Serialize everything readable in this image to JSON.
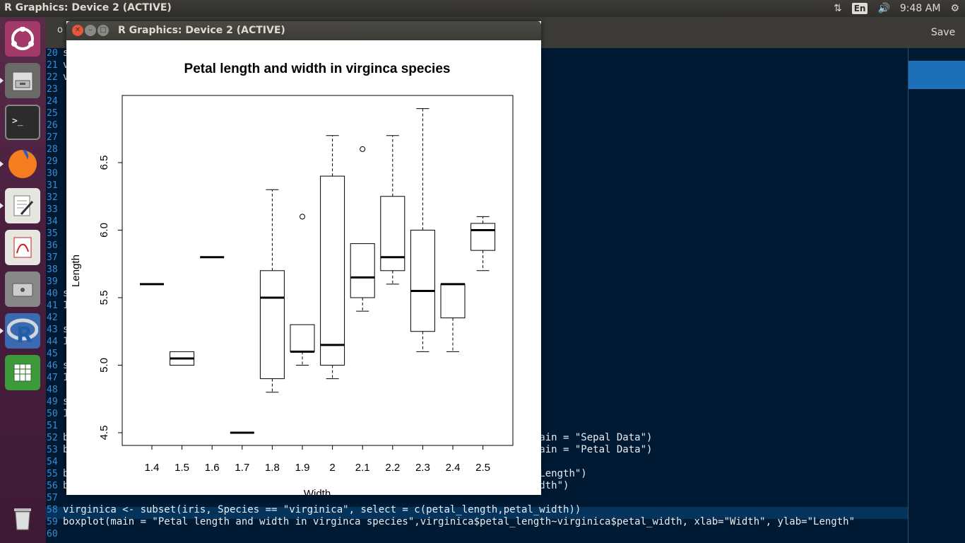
{
  "topbar": {
    "title": "R Graphics: Device 2 (ACTIVE)",
    "lang": "En",
    "time": "9:48 AM"
  },
  "launcher": {
    "items": [
      "ubuntu-logo-icon",
      "file-cabinet-icon",
      "terminal-icon",
      "firefox-icon",
      "text-editor-icon",
      "document-viewer-icon",
      "drive-icon",
      "r-logo-icon",
      "spreadsheet-icon",
      "trash-icon"
    ]
  },
  "editor": {
    "save_label": "Save",
    "left_char": "o",
    "lines": [
      {
        "n": "20",
        "t": "s"
      },
      {
        "n": "21",
        "t": "v"
      },
      {
        "n": "22",
        "t": "v"
      },
      {
        "n": "23",
        "t": ""
      },
      {
        "n": "24",
        "t": ""
      },
      {
        "n": "25",
        "t": ""
      },
      {
        "n": "26",
        "t": ""
      },
      {
        "n": "27",
        "t": ""
      },
      {
        "n": "28",
        "t": ""
      },
      {
        "n": "29",
        "t": ""
      },
      {
        "n": "30",
        "t": ""
      },
      {
        "n": "31",
        "t": ""
      },
      {
        "n": "32",
        "t": ""
      },
      {
        "n": "33",
        "t": ""
      },
      {
        "n": "34",
        "t": ""
      },
      {
        "n": "35",
        "t": ""
      },
      {
        "n": "36",
        "t": ""
      },
      {
        "n": "37",
        "t": ""
      },
      {
        "n": "38",
        "t": ""
      },
      {
        "n": "39",
        "t": ""
      },
      {
        "n": "40",
        "t": "s"
      },
      {
        "n": "41",
        "t": "1"
      },
      {
        "n": "42",
        "t": ""
      },
      {
        "n": "43",
        "t": "s"
      },
      {
        "n": "44",
        "t": "1"
      },
      {
        "n": "45",
        "t": ""
      },
      {
        "n": "46",
        "t": "s"
      },
      {
        "n": "47",
        "t": "1"
      },
      {
        "n": "48",
        "t": ""
      },
      {
        "n": "49",
        "t": "s"
      },
      {
        "n": "50",
        "t": "1"
      },
      {
        "n": "51",
        "t": ""
      },
      {
        "n": "52",
        "t": "b                                                                        ngth\",main = \"Sepal Data\")"
      },
      {
        "n": "53",
        "t": "b                                                                        ngth\",main = \"Petal Data\")"
      },
      {
        "n": "54",
        "t": ""
      },
      {
        "n": "55",
        "t": "b                                                                        \"Petal Length\")"
      },
      {
        "n": "56",
        "t": "b                                                                        etal Width\")"
      },
      {
        "n": "57",
        "t": ""
      },
      {
        "n": "58",
        "t": "virginica <- subset(iris, Species == \"virginica\", select = c(petal_length,petal_width))"
      },
      {
        "n": "59",
        "t": "boxplot(main = \"Petal length and width in virginca species\",virginica$petal_length~virginica$petal_width, xlab=\"Width\", ylab=\"Length\""
      },
      {
        "n": "60",
        "t": ""
      }
    ]
  },
  "rwindow": {
    "title": "R Graphics: Device 2 (ACTIVE)"
  },
  "chart_data": {
    "type": "boxplot",
    "title": "Petal length and width in virginca species",
    "xlabel": "Width",
    "ylabel": "Length",
    "categories": [
      "1.4",
      "1.5",
      "1.6",
      "1.7",
      "1.8",
      "1.9",
      "2",
      "2.1",
      "2.2",
      "2.3",
      "2.4",
      "2.5"
    ],
    "yticks": [
      "4.5",
      "5.0",
      "5.5",
      "6.0",
      "6.5"
    ],
    "ylim": [
      4.4,
      7.0
    ],
    "boxes": [
      {
        "min": 5.6,
        "q1": 5.6,
        "median": 5.6,
        "q3": 5.6,
        "max": 5.6,
        "outliers": []
      },
      {
        "min": 5.0,
        "q1": 5.0,
        "median": 5.05,
        "q3": 5.1,
        "max": 5.1,
        "outliers": []
      },
      {
        "min": 5.8,
        "q1": 5.8,
        "median": 5.8,
        "q3": 5.8,
        "max": 5.8,
        "outliers": []
      },
      {
        "min": 4.5,
        "q1": 4.5,
        "median": 4.5,
        "q3": 4.5,
        "max": 4.5,
        "outliers": []
      },
      {
        "min": 4.8,
        "q1": 4.9,
        "median": 5.5,
        "q3": 5.7,
        "max": 6.3,
        "outliers": []
      },
      {
        "min": 5.0,
        "q1": 5.1,
        "median": 5.1,
        "q3": 5.3,
        "max": 5.3,
        "outliers": [
          6.1
        ]
      },
      {
        "min": 4.9,
        "q1": 5.0,
        "median": 5.15,
        "q3": 6.4,
        "max": 6.7,
        "outliers": []
      },
      {
        "min": 5.4,
        "q1": 5.5,
        "median": 5.65,
        "q3": 5.9,
        "max": 5.9,
        "outliers": [
          6.6
        ]
      },
      {
        "min": 5.6,
        "q1": 5.7,
        "median": 5.8,
        "q3": 6.25,
        "max": 6.7,
        "outliers": []
      },
      {
        "min": 5.1,
        "q1": 5.25,
        "median": 5.55,
        "q3": 6.0,
        "max": 6.9,
        "outliers": []
      },
      {
        "min": 5.1,
        "q1": 5.35,
        "median": 5.6,
        "q3": 5.6,
        "max": 5.6,
        "outliers": []
      },
      {
        "min": 5.7,
        "q1": 5.85,
        "median": 6.0,
        "q3": 6.05,
        "max": 6.1,
        "outliers": []
      }
    ]
  }
}
